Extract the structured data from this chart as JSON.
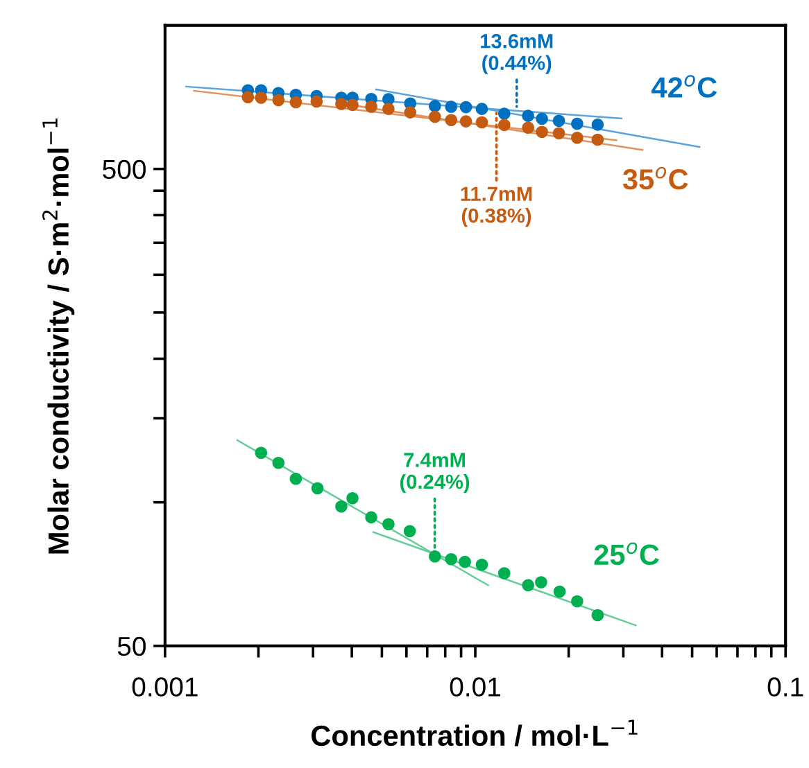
{
  "chart_data": {
    "type": "scatter",
    "xlabel": "Concentration / mol·L$^{−1}$",
    "ylabel": "Molar conductivity / S·m$^{2}$·mol$^{−1}$",
    "log": "xy",
    "marker": "circle",
    "grid": false,
    "legend": false,
    "xlim": [
      0.001,
      0.1
    ],
    "xticks": [
      0.001,
      {
        "value": 0.002,
        "label": null
      },
      {
        "value": 0.003,
        "label": null
      },
      {
        "value": 0.004,
        "label": null
      },
      {
        "value": 0.005,
        "label": null
      },
      {
        "value": 0.006,
        "label": null
      },
      {
        "value": 0.007,
        "label": null
      },
      {
        "value": 0.008,
        "label": null
      },
      {
        "value": 0.009,
        "label": null
      },
      0.01,
      {
        "value": 0.02,
        "label": null
      },
      {
        "value": 0.03,
        "label": null
      },
      {
        "value": 0.04,
        "label": null
      },
      {
        "value": 0.05,
        "label": null
      },
      {
        "value": 0.06,
        "label": null
      },
      {
        "value": 0.07,
        "label": null
      },
      {
        "value": 0.08,
        "label": null
      },
      {
        "value": 0.09,
        "label": null
      },
      0.1
    ],
    "ylim": [
      50,
      1000
    ],
    "yticks": [
      50,
      {
        "value": 100,
        "label": null
      },
      {
        "value": 150,
        "label": null
      },
      {
        "value": 200,
        "label": null
      },
      {
        "value": 250,
        "label": null
      },
      {
        "value": 300,
        "label": null
      },
      {
        "value": 350,
        "label": null
      },
      {
        "value": 400,
        "label": null
      },
      {
        "value": 450,
        "label": null
      },
      500
    ],
    "series": [
      {
        "name": "42$^{o}$C",
        "color": "#0070c0",
        "x": [
          0.00185,
          0.00204,
          0.00232,
          0.00264,
          0.00308,
          0.0037,
          0.00402,
          0.00462,
          0.00525,
          0.00617,
          0.00741,
          0.00836,
          0.00933,
          0.0105,
          0.0124,
          0.0148,
          0.0164,
          0.0186,
          0.0213,
          0.0248
        ],
        "values": [
          731,
          731,
          721,
          715,
          711,
          705,
          705,
          701,
          700,
          686,
          677,
          675,
          674,
          668,
          653,
          646,
          637,
          631,
          622,
          619
        ]
      },
      {
        "name": "35$^{o}$C",
        "color": "#c55a11",
        "x": [
          0.00185,
          0.00204,
          0.00232,
          0.00264,
          0.00308,
          0.0037,
          0.00402,
          0.00462,
          0.00525,
          0.00617,
          0.00741,
          0.00836,
          0.00933,
          0.0105,
          0.0124,
          0.0148,
          0.0164,
          0.0186,
          0.0213,
          0.0248
        ],
        "values": [
          707,
          705,
          697,
          690,
          692,
          684,
          681,
          675,
          668,
          657,
          643,
          633,
          629,
          626,
          618,
          610,
          598,
          594,
          581,
          576
        ]
      },
      {
        "name": "25$^{o}$C",
        "color": "#00b050",
        "x": [
          0.00204,
          0.00232,
          0.00264,
          0.0031,
          0.0037,
          0.00402,
          0.00462,
          0.00525,
          0.00615,
          0.00741,
          0.00836,
          0.00926,
          0.0105,
          0.0124,
          0.0148,
          0.0163,
          0.0187,
          0.0213,
          0.0248
        ],
        "values": [
          127,
          121,
          112,
          107,
          98,
          102,
          93,
          90,
          87,
          77,
          76,
          75,
          74,
          71,
          67,
          68,
          65,
          62,
          58
        ]
      },
      {
        "type": "line",
        "marker": "none",
        "color": "#5ba3dc",
        "x": [
          0.00117,
          0.0296
        ],
        "values": [
          744,
          638
        ]
      },
      {
        "type": "line",
        "marker": "none",
        "color": "#5ba3dc",
        "x": [
          0.00479,
          0.0528
        ],
        "values": [
          734,
          556
        ]
      },
      {
        "type": "line",
        "marker": "none",
        "color": "#e0935e",
        "x": [
          0.00124,
          0.0285
        ],
        "values": [
          729,
          574
        ]
      },
      {
        "type": "line",
        "marker": "none",
        "color": "#e0935e",
        "x": [
          0.00362,
          0.0346
        ],
        "values": [
          687,
          548
        ]
      },
      {
        "type": "line",
        "marker": "none",
        "color": "#66cc99",
        "x": [
          0.00171,
          0.011
        ],
        "values": [
          135,
          67
        ]
      },
      {
        "type": "line",
        "marker": "none",
        "color": "#66cc99",
        "x": [
          0.00469,
          0.0329
        ],
        "values": [
          86.6,
          55.2
        ]
      }
    ],
    "annotations": [
      {
        "text": "13.6mM\n(0.44%)",
        "x": 0.0136,
        "y": 675
      },
      {
        "text": "11.7mM\n(0.38%)",
        "x": 0.0117,
        "y": 655
      },
      {
        "text": "7.4mM\n(0.24%)",
        "x": 0.0074,
        "y": 77
      }
    ]
  }
}
